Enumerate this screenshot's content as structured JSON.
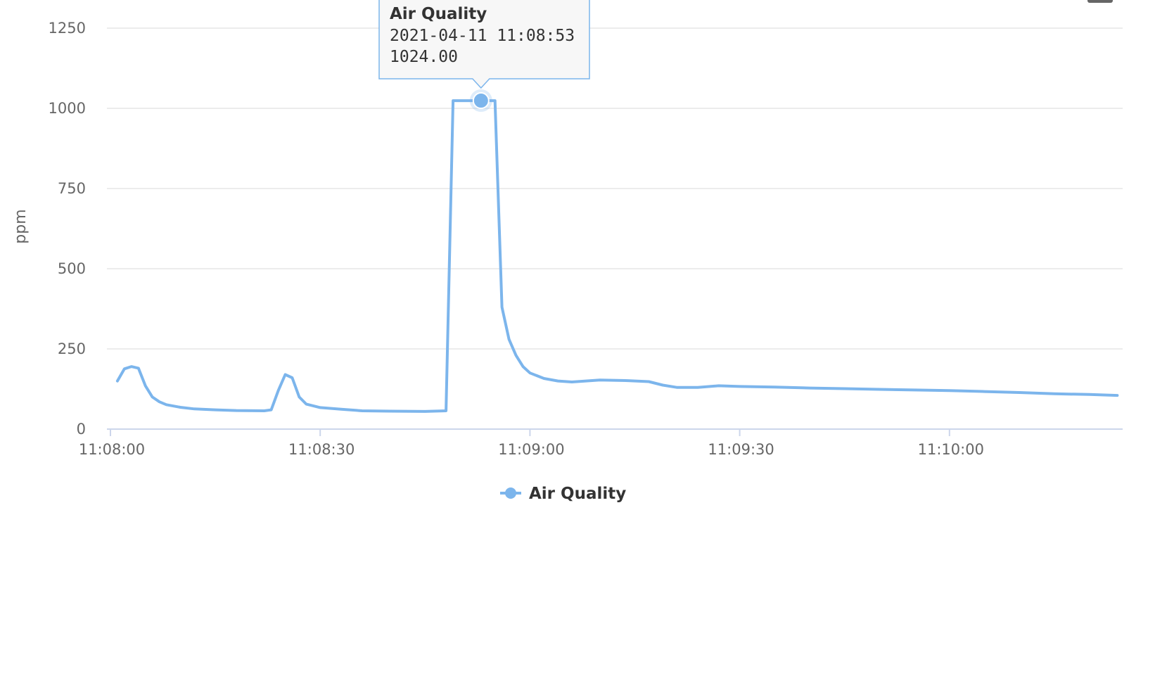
{
  "chart_data": {
    "type": "line",
    "title": "",
    "xlabel": "",
    "ylabel": "ppm",
    "ylim": [
      0,
      1250
    ],
    "xlim": [
      "11:08:00",
      "11:10:25"
    ],
    "x_ticks": [
      "11:08:00",
      "11:08:30",
      "11:09:00",
      "11:09:30",
      "11:10:00"
    ],
    "y_ticks": [
      0,
      250,
      500,
      750,
      1000,
      1250
    ],
    "grid": true,
    "legend": "bottom-center",
    "color": "#7cb5ec",
    "series": [
      {
        "name": "Air Quality",
        "x": [
          "11:08:01",
          "11:08:02",
          "11:08:03",
          "11:08:04",
          "11:08:05",
          "11:08:06",
          "11:08:07",
          "11:08:08",
          "11:08:10",
          "11:08:12",
          "11:08:15",
          "11:08:18",
          "11:08:22",
          "11:08:23",
          "11:08:24",
          "11:08:25",
          "11:08:26",
          "11:08:27",
          "11:08:28",
          "11:08:30",
          "11:08:33",
          "11:08:36",
          "11:08:40",
          "11:08:45",
          "11:08:48",
          "11:08:49",
          "11:08:50",
          "11:08:53",
          "11:08:55",
          "11:08:56",
          "11:08:57",
          "11:08:58",
          "11:08:59",
          "11:09:00",
          "11:09:02",
          "11:09:04",
          "11:09:06",
          "11:09:10",
          "11:09:14",
          "11:09:17",
          "11:09:19",
          "11:09:21",
          "11:09:24",
          "11:09:27",
          "11:09:30",
          "11:09:35",
          "11:09:40",
          "11:09:45",
          "11:09:50",
          "11:09:55",
          "11:10:00",
          "11:10:05",
          "11:10:10",
          "11:10:15",
          "11:10:20",
          "11:10:24"
        ],
        "y": [
          150,
          188,
          195,
          190,
          135,
          100,
          85,
          76,
          68,
          63,
          60,
          58,
          57,
          60,
          120,
          170,
          160,
          100,
          78,
          67,
          62,
          57,
          56,
          55,
          57,
          1024,
          1024,
          1024,
          1024,
          380,
          280,
          230,
          195,
          175,
          158,
          150,
          147,
          153,
          151,
          148,
          137,
          130,
          130,
          135,
          133,
          131,
          128,
          126,
          124,
          122,
          120,
          117,
          114,
          110,
          108,
          105
        ]
      }
    ],
    "tooltip": {
      "series": "Air Quality",
      "date": "2021-04-11 11:08:53",
      "value": "1024.00",
      "x": "11:08:53",
      "y": 1024
    }
  }
}
